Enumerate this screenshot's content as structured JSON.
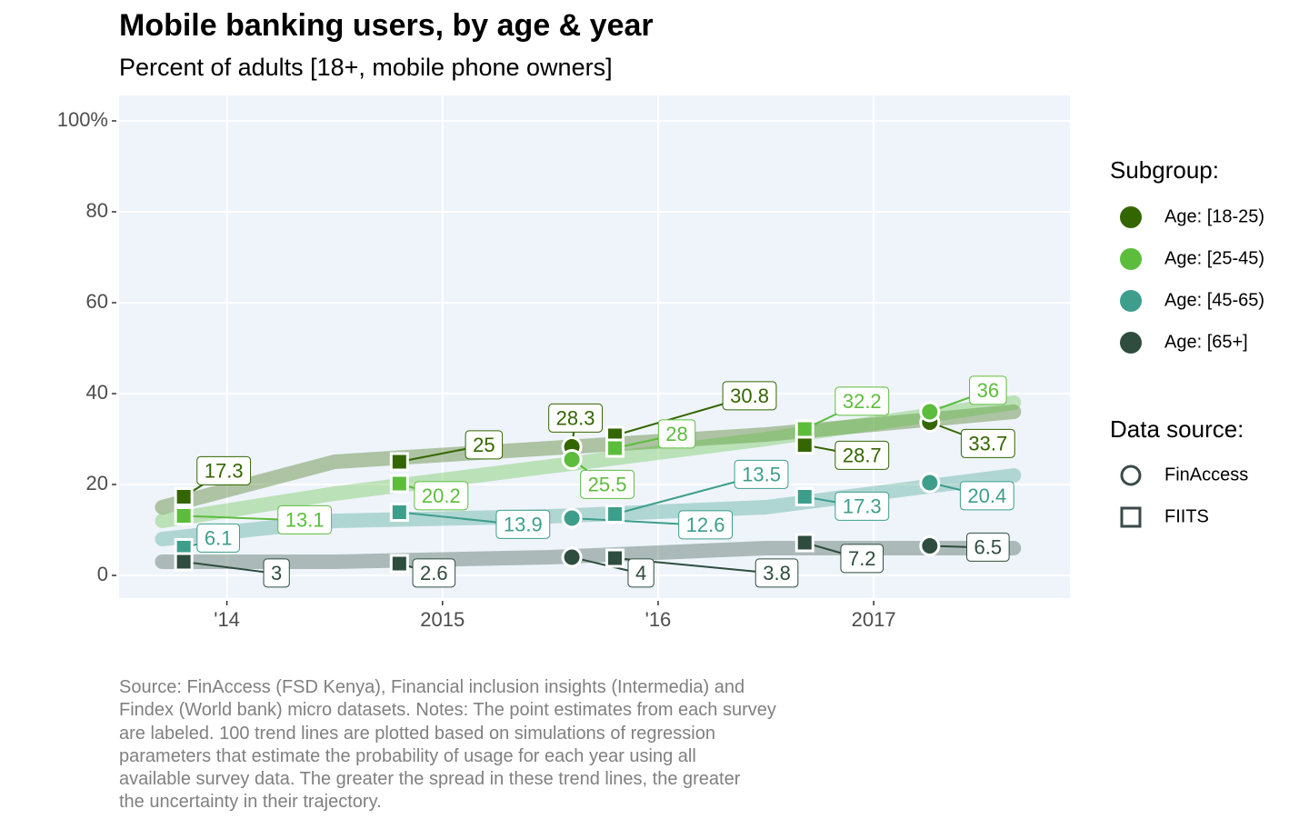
{
  "chart_data": {
    "type": "labeled-scatter",
    "title": "Mobile banking users, by age & year",
    "subtitle": "Percent of adults [18+, mobile phone owners]",
    "caption_lines": [
      "Source: FinAccess (FSD Kenya), Financial inclusion insights (Intermedia) and",
      "Findex (World bank) micro datasets. Notes: The point estimates from each survey",
      "are labeled. 100 trend lines are plotted based on simulations of regression",
      "parameters that estimate the probability of usage for each year using all",
      "available survey data. The greater the spread in these trend lines, the greater",
      "the uncertainty in their trajectory."
    ],
    "xlim": [
      2013.5,
      2017.91
    ],
    "ylim": [
      -5,
      105.6
    ],
    "xticks": [
      {
        "value": 2014,
        "label": "'14"
      },
      2015,
      {
        "value": 2016,
        "label": "'16"
      },
      2017
    ],
    "yticks": [
      0,
      20,
      40,
      60,
      80,
      {
        "value": 100,
        "label": "100%"
      }
    ],
    "grid": true,
    "legend_title": "Subgroup:",
    "source_legend_title": "Data source:",
    "sources": [
      {
        "name": "FinAccess",
        "shape": "circle"
      },
      {
        "name": "FIITS",
        "shape": "square"
      }
    ],
    "series": [
      {
        "name": "Age: [18-25)",
        "color": "#336600",
        "x": [
          2013.8,
          2014.8,
          2015.6,
          2015.8,
          2016.68,
          2017.26
        ],
        "values": [
          17.3,
          25,
          28.3,
          30.8,
          28.7,
          33.7
        ],
        "sources": [
          1,
          1,
          0,
          1,
          1,
          0
        ],
        "trend": {
          "x": [
            2013.7,
            2014.5,
            2015.5,
            2016.5,
            2017.65
          ],
          "values": [
            15,
            25,
            28,
            31,
            36
          ]
        }
      },
      {
        "name": "Age: [25-45)",
        "color": "#5cbd3c",
        "x": [
          2013.8,
          2014.8,
          2015.6,
          2015.8,
          2016.68,
          2017.26
        ],
        "values": [
          13.1,
          20.2,
          25.5,
          28,
          32.2,
          36
        ],
        "sources": [
          1,
          1,
          0,
          1,
          1,
          0
        ],
        "trend": {
          "x": [
            2013.7,
            2014.5,
            2015.5,
            2016.5,
            2017.65
          ],
          "values": [
            12,
            18,
            24,
            30,
            38
          ]
        }
      },
      {
        "name": "Age: [45-65)",
        "color": "#3d9e8c",
        "x": [
          2013.8,
          2014.8,
          2015.6,
          2015.8,
          2016.68,
          2017.26
        ],
        "values": [
          6.1,
          13.9,
          12.6,
          13.5,
          17.3,
          20.4
        ],
        "sources": [
          1,
          1,
          0,
          1,
          1,
          0
        ],
        "trend": {
          "x": [
            2013.7,
            2014.5,
            2015.5,
            2016.5,
            2017.65
          ],
          "values": [
            8,
            12,
            13,
            15,
            22
          ]
        }
      },
      {
        "name": "Age: [65+]",
        "color": "#2e4d3e",
        "x": [
          2013.8,
          2014.8,
          2015.6,
          2015.8,
          2016.68,
          2017.26
        ],
        "values": [
          3,
          2.6,
          4,
          3.8,
          7.2,
          6.5
        ],
        "sources": [
          1,
          1,
          0,
          1,
          1,
          0
        ],
        "trend": {
          "x": [
            2013.7,
            2014.5,
            2015.5,
            2016.5,
            2017.65
          ],
          "values": [
            3,
            3,
            4,
            6,
            6
          ]
        }
      }
    ]
  }
}
